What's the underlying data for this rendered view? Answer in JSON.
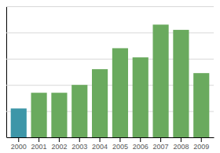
{
  "chart_data": {
    "type": "bar",
    "categories": [
      "2000",
      "2001",
      "2002",
      "2003",
      "2004",
      "2005",
      "2006",
      "2007",
      "2008",
      "2009"
    ],
    "values": [
      22,
      34,
      34,
      40,
      52,
      68,
      61,
      86,
      82,
      49
    ],
    "colors": [
      "#3d96a8",
      "#6aaa5e",
      "#6aaa5e",
      "#6aaa5e",
      "#6aaa5e",
      "#6aaa5e",
      "#6aaa5e",
      "#6aaa5e",
      "#6aaa5e",
      "#6aaa5e"
    ],
    "ylim": [
      0,
      100
    ],
    "yticks": [
      0,
      20,
      40,
      60,
      80,
      100
    ],
    "grid": true,
    "tick_labels": "x"
  }
}
